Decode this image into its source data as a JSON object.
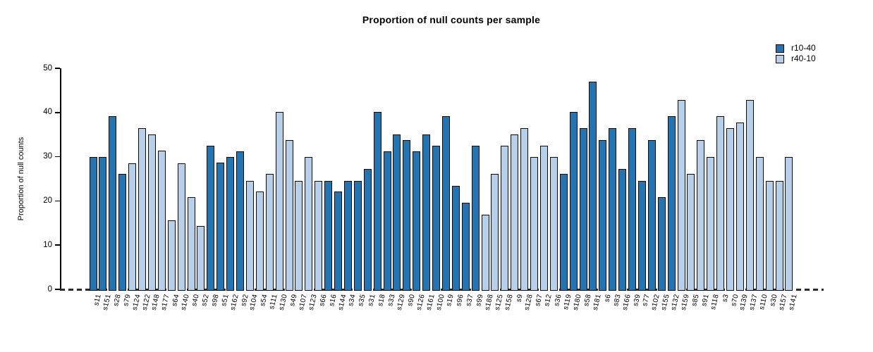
{
  "title": "Proportion of null counts per sample",
  "chart_data": {
    "type": "bar",
    "title": "Proportion of null counts per sample",
    "xlabel": "",
    "ylabel": "Proportion of null counts",
    "ylim": [
      0,
      50
    ],
    "yticks": [
      0,
      10,
      20,
      30,
      40,
      50
    ],
    "grid": false,
    "legend_position": "top-right",
    "zero_line_style": "dashed",
    "legend": [
      {
        "label": "r10-40",
        "color": "#2474b2"
      },
      {
        "label": "r40-10",
        "color": "#b7cfe9"
      }
    ],
    "samples": [
      {
        "label": "s11",
        "group": "r10-40",
        "value": 29.9
      },
      {
        "label": "s151",
        "group": "r10-40",
        "value": 29.9
      },
      {
        "label": "s28",
        "group": "r10-40",
        "value": 39.1
      },
      {
        "label": "s79",
        "group": "r10-40",
        "value": 26.1
      },
      {
        "label": "s124",
        "group": "r40-10",
        "value": 28.5
      },
      {
        "label": "s122",
        "group": "r40-10",
        "value": 36.4
      },
      {
        "label": "s148",
        "group": "r40-10",
        "value": 35.1
      },
      {
        "label": "s177",
        "group": "r40-10",
        "value": 31.3
      },
      {
        "label": "s64",
        "group": "r40-10",
        "value": 15.6
      },
      {
        "label": "s140",
        "group": "r40-10",
        "value": 28.5
      },
      {
        "label": "s40",
        "group": "r40-10",
        "value": 20.9
      },
      {
        "label": "s52",
        "group": "r40-10",
        "value": 14.4
      },
      {
        "label": "s98",
        "group": "r10-40",
        "value": 32.5
      },
      {
        "label": "s51",
        "group": "r10-40",
        "value": 28.7
      },
      {
        "label": "s162",
        "group": "r10-40",
        "value": 29.9
      },
      {
        "label": "s92",
        "group": "r10-40",
        "value": 31.2
      },
      {
        "label": "s104",
        "group": "r40-10",
        "value": 24.6
      },
      {
        "label": "s54",
        "group": "r40-10",
        "value": 22.1
      },
      {
        "label": "s111",
        "group": "r40-10",
        "value": 26.1
      },
      {
        "label": "s130",
        "group": "r40-10",
        "value": 40.2
      },
      {
        "label": "s49",
        "group": "r40-10",
        "value": 33.8
      },
      {
        "label": "s107",
        "group": "r40-10",
        "value": 24.6
      },
      {
        "label": "s123",
        "group": "r40-10",
        "value": 29.9
      },
      {
        "label": "s66",
        "group": "r40-10",
        "value": 24.6
      },
      {
        "label": "s16",
        "group": "r10-40",
        "value": 24.6
      },
      {
        "label": "s144",
        "group": "r10-40",
        "value": 22.1
      },
      {
        "label": "s34",
        "group": "r10-40",
        "value": 24.6
      },
      {
        "label": "s35",
        "group": "r10-40",
        "value": 24.6
      },
      {
        "label": "s31",
        "group": "r10-40",
        "value": 27.2
      },
      {
        "label": "s18",
        "group": "r10-40",
        "value": 40.2
      },
      {
        "label": "s33",
        "group": "r10-40",
        "value": 31.2
      },
      {
        "label": "s129",
        "group": "r10-40",
        "value": 35.0
      },
      {
        "label": "s90",
        "group": "r10-40",
        "value": 33.8
      },
      {
        "label": "s126",
        "group": "r10-40",
        "value": 31.2
      },
      {
        "label": "s161",
        "group": "r10-40",
        "value": 35.0
      },
      {
        "label": "s100",
        "group": "r10-40",
        "value": 32.5
      },
      {
        "label": "s19",
        "group": "r10-40",
        "value": 39.1
      },
      {
        "label": "s96",
        "group": "r10-40",
        "value": 23.4
      },
      {
        "label": "s37",
        "group": "r10-40",
        "value": 19.6
      },
      {
        "label": "s99",
        "group": "r10-40",
        "value": 32.5
      },
      {
        "label": "s188",
        "group": "r40-10",
        "value": 16.9
      },
      {
        "label": "s125",
        "group": "r40-10",
        "value": 26.1
      },
      {
        "label": "s158",
        "group": "r40-10",
        "value": 32.5
      },
      {
        "label": "s9",
        "group": "r40-10",
        "value": 35.1
      },
      {
        "label": "s128",
        "group": "r40-10",
        "value": 36.4
      },
      {
        "label": "s67",
        "group": "r40-10",
        "value": 29.9
      },
      {
        "label": "s12",
        "group": "r40-10",
        "value": 32.5
      },
      {
        "label": "s36",
        "group": "r40-10",
        "value": 29.9
      },
      {
        "label": "s119",
        "group": "r10-40",
        "value": 26.1
      },
      {
        "label": "s180",
        "group": "r10-40",
        "value": 40.2
      },
      {
        "label": "s58",
        "group": "r10-40",
        "value": 36.4
      },
      {
        "label": "s181",
        "group": "r10-40",
        "value": 46.9
      },
      {
        "label": "s6",
        "group": "r10-40",
        "value": 33.8
      },
      {
        "label": "s83",
        "group": "r10-40",
        "value": 36.4
      },
      {
        "label": "s166",
        "group": "r10-40",
        "value": 27.2
      },
      {
        "label": "s39",
        "group": "r10-40",
        "value": 36.4
      },
      {
        "label": "s77",
        "group": "r10-40",
        "value": 24.6
      },
      {
        "label": "s102",
        "group": "r10-40",
        "value": 33.8
      },
      {
        "label": "s155",
        "group": "r10-40",
        "value": 20.9
      },
      {
        "label": "s132",
        "group": "r10-40",
        "value": 39.1
      },
      {
        "label": "s159",
        "group": "r40-10",
        "value": 42.9
      },
      {
        "label": "s85",
        "group": "r40-10",
        "value": 26.1
      },
      {
        "label": "s91",
        "group": "r40-10",
        "value": 33.8
      },
      {
        "label": "s118",
        "group": "r40-10",
        "value": 29.9
      },
      {
        "label": "s3",
        "group": "r40-10",
        "value": 39.1
      },
      {
        "label": "s70",
        "group": "r40-10",
        "value": 36.4
      },
      {
        "label": "s139",
        "group": "r40-10",
        "value": 37.7
      },
      {
        "label": "s137",
        "group": "r40-10",
        "value": 42.9
      },
      {
        "label": "s110",
        "group": "r40-10",
        "value": 29.9
      },
      {
        "label": "s30",
        "group": "r40-10",
        "value": 24.6
      },
      {
        "label": "s157",
        "group": "r40-10",
        "value": 24.6
      },
      {
        "label": "s141",
        "group": "r40-10",
        "value": 29.9
      }
    ]
  }
}
